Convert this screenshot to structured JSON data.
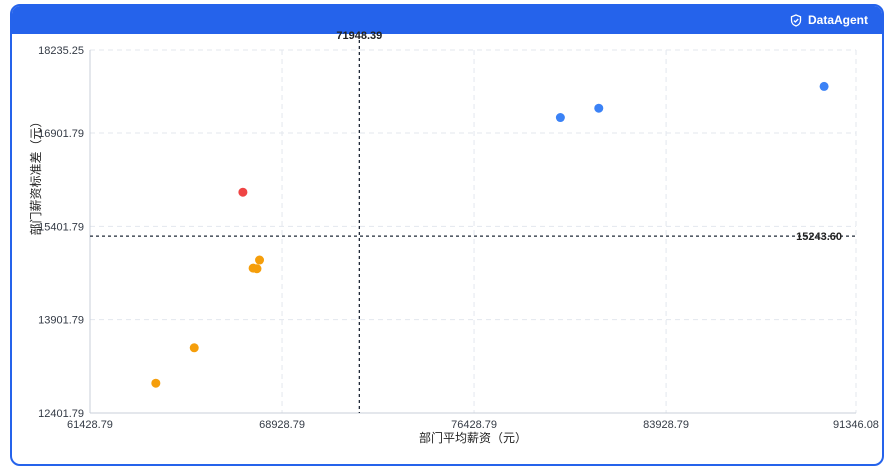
{
  "app": {
    "brand_name": "DataAgent",
    "brand_icon": "shield-check-icon",
    "accent_color": "#2563eb"
  },
  "chart_data": {
    "type": "scatter",
    "title": "",
    "xlabel": "部门平均薪资（元）",
    "ylabel": "部门薪资标准差（元）",
    "xlim": [
      61428.79,
      91346.08
    ],
    "ylim": [
      12401.79,
      18235.25
    ],
    "x_ticks": [
      "61428.79",
      "68928.79",
      "76428.79",
      "83928.79",
      "91346.08"
    ],
    "y_ticks": [
      "12401.79",
      "13901.79",
      "15401.79",
      "16901.79",
      "18235.25"
    ],
    "x_tick_values": [
      61428.79,
      68928.79,
      76428.79,
      83928.79,
      91346.08
    ],
    "y_tick_values": [
      12401.79,
      13901.79,
      15401.79,
      16901.79,
      18235.25
    ],
    "grid": true,
    "reference_lines": {
      "x": {
        "value": 71948.39,
        "label": "71948.39"
      },
      "y": {
        "value": 15243.6,
        "label": "15243.60"
      }
    },
    "points": [
      {
        "x": 79800,
        "y": 17150,
        "color": "#3b82f6"
      },
      {
        "x": 81300,
        "y": 17300,
        "color": "#3b82f6"
      },
      {
        "x": 90100,
        "y": 17650,
        "color": "#3b82f6"
      },
      {
        "x": 67400,
        "y": 15950,
        "color": "#ef4444"
      },
      {
        "x": 68050,
        "y": 14860,
        "color": "#f59e0b"
      },
      {
        "x": 67800,
        "y": 14730,
        "color": "#f59e0b"
      },
      {
        "x": 67950,
        "y": 14720,
        "color": "#f59e0b"
      },
      {
        "x": 65500,
        "y": 13450,
        "color": "#f59e0b"
      },
      {
        "x": 64000,
        "y": 12880,
        "color": "#f59e0b"
      }
    ]
  }
}
